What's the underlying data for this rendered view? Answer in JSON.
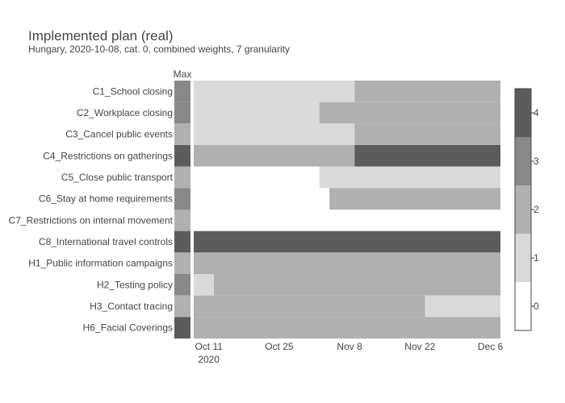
{
  "title": "Implemented plan (real)",
  "subtitle": "Hungary, 2020-10-08, cat. 0, combined weights, 7 granularity",
  "max_label": "Max",
  "chart_data": {
    "type": "heatmap",
    "title": "Implemented plan (real)",
    "subtitle": "Hungary, 2020-10-08, cat. 0, combined weights, 7 granularity",
    "x_start": "2020-10-08",
    "x_end": "2020-12-08",
    "x_ticks": [
      {
        "date": "2020-10-11",
        "label": "Oct 11",
        "sublabel": "2020"
      },
      {
        "date": "2020-10-25",
        "label": "Oct 25",
        "sublabel": ""
      },
      {
        "date": "2020-11-08",
        "label": "Nov 8",
        "sublabel": ""
      },
      {
        "date": "2020-11-22",
        "label": "Nov 22",
        "sublabel": ""
      },
      {
        "date": "2020-12-06",
        "label": "Dec 6",
        "sublabel": ""
      }
    ],
    "rows": [
      {
        "name": "C1_School closing",
        "max": 3,
        "segments": [
          {
            "start": "2020-10-08",
            "end": "2020-11-09",
            "value": 1
          },
          {
            "start": "2020-11-09",
            "end": "2020-12-08",
            "value": 2
          }
        ]
      },
      {
        "name": "C2_Workplace closing",
        "max": 3,
        "segments": [
          {
            "start": "2020-10-08",
            "end": "2020-11-02",
            "value": 1
          },
          {
            "start": "2020-11-02",
            "end": "2020-12-08",
            "value": 2
          }
        ]
      },
      {
        "name": "C3_Cancel public events",
        "max": 2,
        "segments": [
          {
            "start": "2020-10-08",
            "end": "2020-11-09",
            "value": 1
          },
          {
            "start": "2020-11-09",
            "end": "2020-12-08",
            "value": 2
          }
        ]
      },
      {
        "name": "C4_Restrictions on gatherings",
        "max": 4,
        "segments": [
          {
            "start": "2020-10-08",
            "end": "2020-11-09",
            "value": 2
          },
          {
            "start": "2020-11-09",
            "end": "2020-12-08",
            "value": 4
          }
        ]
      },
      {
        "name": "C5_Close public transport",
        "max": 2,
        "segments": [
          {
            "start": "2020-10-08",
            "end": "2020-11-02",
            "value": 0
          },
          {
            "start": "2020-11-02",
            "end": "2020-12-08",
            "value": 1
          }
        ]
      },
      {
        "name": "C6_Stay at home requirements",
        "max": 3,
        "segments": [
          {
            "start": "2020-10-08",
            "end": "2020-11-04",
            "value": 0
          },
          {
            "start": "2020-11-04",
            "end": "2020-12-08",
            "value": 2
          }
        ]
      },
      {
        "name": "C7_Restrictions on internal movement",
        "max": 2,
        "segments": [
          {
            "start": "2020-10-08",
            "end": "2020-12-08",
            "value": 0
          }
        ]
      },
      {
        "name": "C8_International travel controls",
        "max": 4,
        "segments": [
          {
            "start": "2020-10-08",
            "end": "2020-12-08",
            "value": 4
          }
        ]
      },
      {
        "name": "H1_Public information campaigns",
        "max": 2,
        "segments": [
          {
            "start": "2020-10-08",
            "end": "2020-12-08",
            "value": 2
          }
        ]
      },
      {
        "name": "H2_Testing policy",
        "max": 3,
        "segments": [
          {
            "start": "2020-10-08",
            "end": "2020-10-12",
            "value": 1
          },
          {
            "start": "2020-10-12",
            "end": "2020-12-08",
            "value": 2
          }
        ]
      },
      {
        "name": "H3_Contact tracing",
        "max": 2,
        "segments": [
          {
            "start": "2020-10-08",
            "end": "2020-11-23",
            "value": 2
          },
          {
            "start": "2020-11-23",
            "end": "2020-12-08",
            "value": 1
          }
        ]
      },
      {
        "name": "H6_Facial Coverings",
        "max": 4,
        "segments": [
          {
            "start": "2020-10-08",
            "end": "2020-12-08",
            "value": 2
          }
        ]
      }
    ],
    "colorscale": {
      "min": -0.5,
      "max": 4.5,
      "ticks": [
        0,
        1,
        2,
        3,
        4
      ],
      "colors": [
        "#ffffff",
        "#d9d9d9",
        "#b0b0b0",
        "#888888",
        "#5c5c5c"
      ]
    },
    "legend_position": "right"
  }
}
